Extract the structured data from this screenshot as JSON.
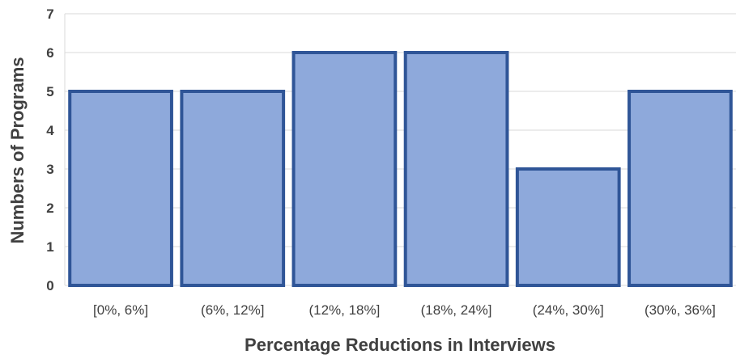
{
  "chart_data": {
    "type": "bar",
    "title": "",
    "xlabel": "Percentage Reductions in Interviews",
    "ylabel": "Numbers of Programs",
    "categories": [
      "[0%, 6%]",
      "(6%, 12%]",
      "(12%, 18%]",
      "(18%, 24%]",
      "(24%, 30%]",
      "(30%, 36%]"
    ],
    "values": [
      5,
      5,
      6,
      6,
      3,
      5
    ],
    "ylim": [
      0,
      7
    ],
    "yticks": [
      0,
      1,
      2,
      3,
      4,
      5,
      6,
      7
    ],
    "grid": true,
    "legend": "none"
  },
  "colors": {
    "bar_fill": "#8EA9DB",
    "bar_stroke": "#2F5597",
    "grid": "#D9D9D9",
    "text": "#404040"
  }
}
